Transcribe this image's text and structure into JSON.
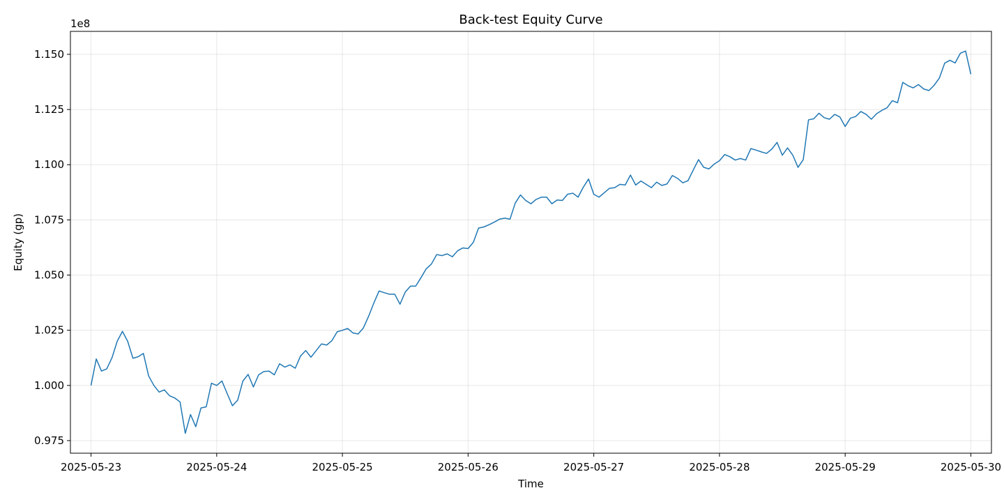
{
  "chart_data": {
    "type": "line",
    "title": "Back-test Equity Curve",
    "xlabel": "Time",
    "ylabel": "Equity (gp)",
    "y_offset_label": "1e8",
    "x_tick_labels": [
      "2025-05-23",
      "2025-05-24",
      "2025-05-25",
      "2025-05-26",
      "2025-05-27",
      "2025-05-28",
      "2025-05-29",
      "2025-05-30"
    ],
    "y_tick_labels": [
      "0.975",
      "1.000",
      "1.025",
      "1.050",
      "1.075",
      "1.100",
      "1.125",
      "1.150"
    ],
    "y_tick_values": [
      0.975,
      1.0,
      1.025,
      1.05,
      1.075,
      1.1,
      1.125,
      1.15
    ],
    "xlim": [
      "2025-05-22 20:04",
      "2025-05-30 03:56"
    ],
    "ylim": [
      0.9693,
      1.1604
    ],
    "grid": true,
    "line_color": "#1f77b4",
    "series": [
      {
        "x_start": "2025-05-23 00:00",
        "x_end": "2025-05-30 00:00",
        "values": [
          1.0,
          1.012,
          1.0065,
          1.0075,
          1.0125,
          1.02,
          1.0245,
          1.02,
          1.0123,
          1.013,
          1.0145,
          1.0043,
          1.0,
          0.997,
          0.998,
          0.9953,
          0.9943,
          0.9925,
          0.9783,
          0.9868,
          0.9813,
          0.9898,
          0.9903,
          1.001,
          1.0,
          1.002,
          0.9963,
          0.9908,
          0.9933,
          1.002,
          1.005,
          0.9993,
          1.0048,
          1.0063,
          1.0065,
          1.0048,
          1.0098,
          1.0083,
          1.0093,
          1.0078,
          1.0133,
          1.0158,
          1.0128,
          1.0158,
          1.0188,
          1.0183,
          1.0203,
          1.0243,
          1.025,
          1.0258,
          1.0238,
          1.0233,
          1.026,
          1.0313,
          1.0373,
          1.0428,
          1.042,
          1.0413,
          1.0413,
          1.0368,
          1.0423,
          1.045,
          1.045,
          1.0488,
          1.0528,
          1.055,
          1.0593,
          1.0588,
          1.0596,
          1.0583,
          1.061,
          1.0623,
          1.062,
          1.0648,
          1.0713,
          1.0718,
          1.0728,
          1.074,
          1.0753,
          1.0758,
          1.0753,
          1.0826,
          1.0863,
          1.0838,
          1.0823,
          1.0843,
          1.0853,
          1.0853,
          1.0823,
          1.084,
          1.0838,
          1.0866,
          1.0871,
          1.0853,
          1.0898,
          1.0935,
          1.0866,
          1.0853,
          1.0873,
          1.0893,
          1.0896,
          1.0911,
          1.0908,
          1.0953,
          1.0908,
          1.0926,
          1.0911,
          1.0896,
          1.0921,
          1.0906,
          1.0913,
          1.0951,
          1.0938,
          1.0918,
          1.0928,
          1.0976,
          1.1023,
          1.0988,
          1.0981,
          1.1003,
          1.1018,
          1.1046,
          1.1036,
          1.1021,
          1.1028,
          1.1021,
          1.1073,
          1.1066,
          1.1058,
          1.1051,
          1.1071,
          1.1101,
          1.1043,
          1.1076,
          1.1043,
          1.0988,
          1.1023,
          1.1203,
          1.1208,
          1.1233,
          1.1213,
          1.1206,
          1.1228,
          1.1216,
          1.1173,
          1.1211,
          1.1218,
          1.1241,
          1.1228,
          1.1206,
          1.1231,
          1.1246,
          1.1258,
          1.129,
          1.1281,
          1.1373,
          1.1358,
          1.1348,
          1.1363,
          1.1343,
          1.1336,
          1.136,
          1.1393,
          1.146,
          1.1473,
          1.1461,
          1.1505,
          1.1515,
          1.141
        ]
      }
    ]
  }
}
